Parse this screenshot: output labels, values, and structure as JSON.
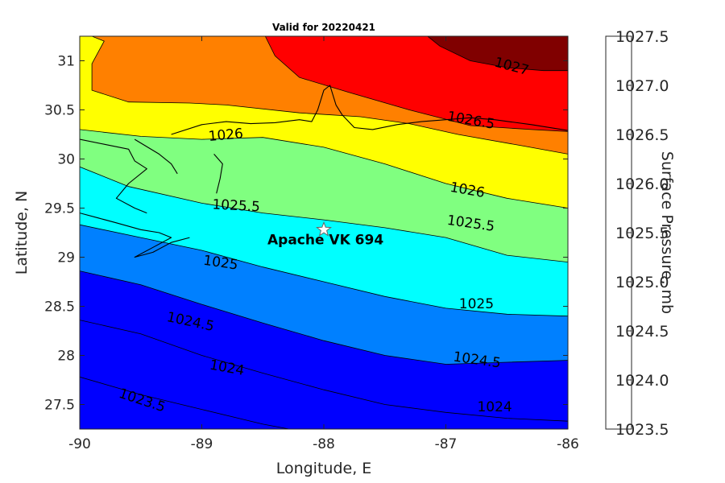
{
  "chart_data": {
    "type": "contour",
    "title": "Valid for 20220421",
    "xlabel": "Longitude, E",
    "ylabel": "Latitude, N",
    "xlim": [
      -90,
      -86
    ],
    "ylim": [
      27.25,
      31.25
    ],
    "xticks": [
      "-90",
      "-89",
      "-88",
      "-87",
      "-86"
    ],
    "yticks": [
      "27.5",
      "28",
      "28.5",
      "29",
      "29.5",
      "30",
      "30.5",
      "31"
    ],
    "colorbar": {
      "label": "Surface Pressure, mb",
      "ticks": [
        "1023.5",
        "1024.0",
        "1024.5",
        "1025.0",
        "1025.5",
        "1026.0",
        "1026.5",
        "1027.0",
        "1027.5"
      ],
      "colors": [
        "#0000ff",
        "#0080ff",
        "#00ffff",
        "#80ff80",
        "#ffff00",
        "#ff8000",
        "#ff0000",
        "#800000"
      ]
    },
    "contour_levels": [
      1023.5,
      1024,
      1024.5,
      1025,
      1025.5,
      1026,
      1026.5,
      1027
    ],
    "contour_labels": [
      {
        "text": "1023.5",
        "lon": -89.5,
        "lat": 27.5,
        "angle": 18
      },
      {
        "text": "1024",
        "lon": -88.8,
        "lat": 27.83,
        "angle": 10
      },
      {
        "text": "1024",
        "lon": -86.6,
        "lat": 27.43,
        "angle": 0
      },
      {
        "text": "1024.5",
        "lon": -89.1,
        "lat": 28.3,
        "angle": 12
      },
      {
        "text": "1024.5",
        "lon": -86.75,
        "lat": 27.91,
        "angle": 8
      },
      {
        "text": "1025",
        "lon": -88.85,
        "lat": 28.9,
        "angle": 8
      },
      {
        "text": "1025",
        "lon": -86.75,
        "lat": 28.48,
        "angle": 0
      },
      {
        "text": "1025.5",
        "lon": -88.72,
        "lat": 29.48,
        "angle": 3
      },
      {
        "text": "1025.5",
        "lon": -86.8,
        "lat": 29.3,
        "angle": 8
      },
      {
        "text": "1026",
        "lon": -88.8,
        "lat": 30.2,
        "angle": -5
      },
      {
        "text": "1026",
        "lon": -86.83,
        "lat": 29.64,
        "angle": 10
      },
      {
        "text": "1026.5",
        "lon": -86.8,
        "lat": 30.35,
        "angle": 10
      },
      {
        "text": "1027",
        "lon": -86.47,
        "lat": 30.9,
        "angle": 15
      }
    ],
    "station": {
      "label": "Apache VK 694",
      "lon": -88.0,
      "lat": 29.28
    }
  }
}
